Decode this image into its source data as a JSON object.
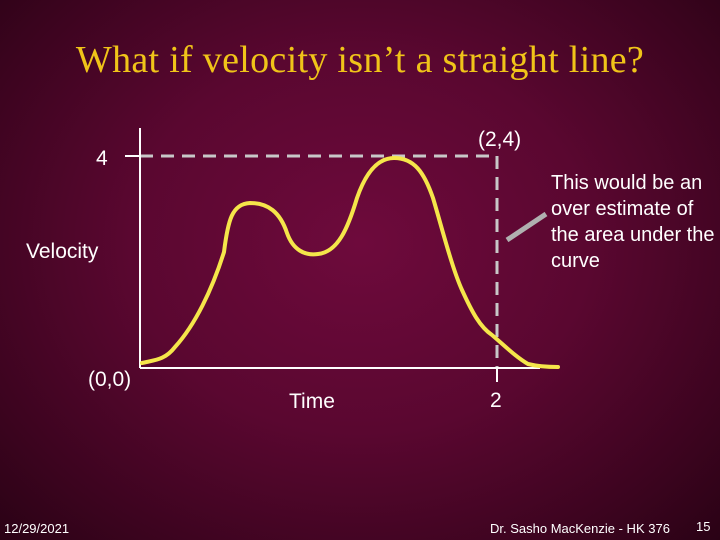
{
  "slide": {
    "title": "What if velocity isn’t a straight line?",
    "diagram": {
      "y_tick_label": "4",
      "y_axis_label": "Velocity",
      "origin_label": "(0,0)",
      "x_axis_label": "Time",
      "x_tick_label": "2",
      "corner_label": "(2,4)",
      "curve_color": "#f5e64a",
      "axis_color": "#ffffff",
      "guide_color": "#c8c8c8"
    },
    "annotation": "This would be an over estimate of the area under the curve",
    "footer": {
      "date": "12/29/2021",
      "author": "Dr. Sasho MacKenzie - HK 376",
      "page": "15"
    }
  }
}
